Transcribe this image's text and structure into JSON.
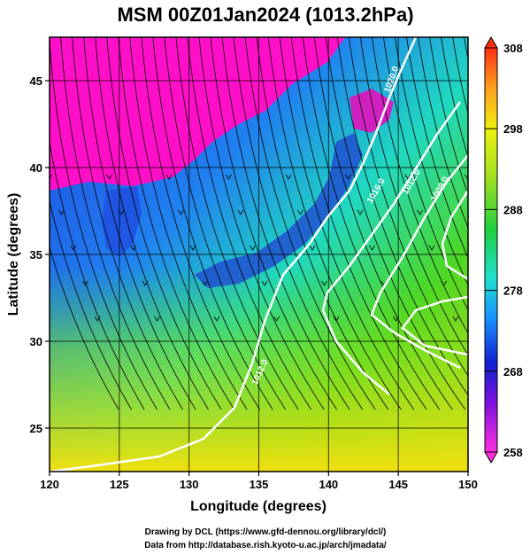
{
  "title": "MSM 00Z01Jan2024 (1013.2hPa)",
  "xlabel": "Longitude (degrees)",
  "ylabel": "Latitude  (degrees)",
  "x_ticks": [
    "120",
    "125",
    "130",
    "135",
    "140",
    "145",
    "150"
  ],
  "y_ticks": [
    "45",
    "40",
    "35",
    "30",
    "25"
  ],
  "colorbar": {
    "ticks": [
      "308",
      "298",
      "288",
      "278",
      "268",
      "258"
    ],
    "min": 258,
    "max": 308
  },
  "contour_labels": [
    "1020.0",
    "1016.0",
    "1012.0",
    "1008.0",
    "1012.0"
  ],
  "credits": {
    "line1": "Drawing by DCL (https://www.gfd-dennou.org/library/dcl/)",
    "line2": "Data from http://database.rish.kyoto-u.ac.jp/arch/jmadata/"
  },
  "colors": {
    "cold": "#ff10c8",
    "cool": "#2050e8",
    "mid": "#20d8c0",
    "warm": "#30d020",
    "hot": "#ffd010"
  }
}
